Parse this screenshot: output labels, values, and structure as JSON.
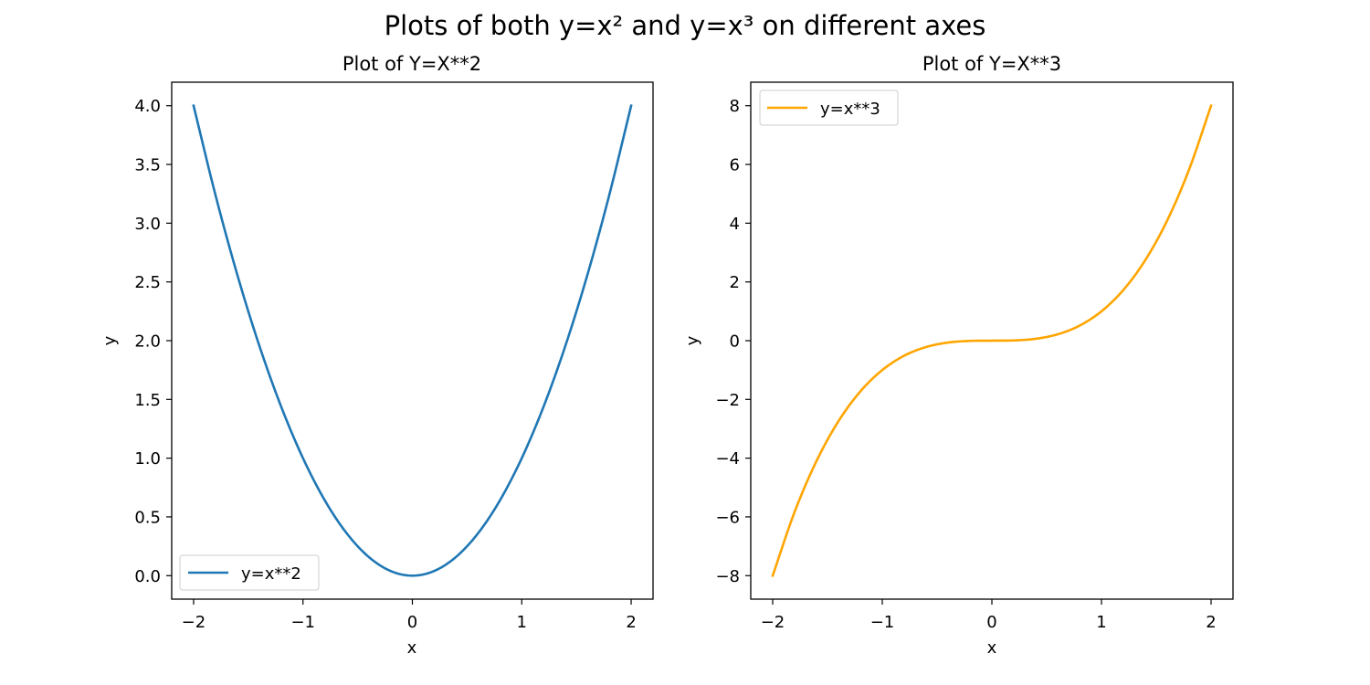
{
  "figure": {
    "suptitle": "Plots of both y=x² and y=x³ on different axes"
  },
  "chart_data": [
    {
      "type": "line",
      "title": "Plot of Y=X**2",
      "xlabel": "x",
      "ylabel": "y",
      "xlim": [
        -2.2,
        2.2
      ],
      "ylim": [
        -0.2,
        4.2
      ],
      "xticks": [
        -2,
        -1,
        0,
        1,
        2
      ],
      "xtick_labels": [
        "−2",
        "−1",
        "0",
        "1",
        "2"
      ],
      "yticks": [
        0.0,
        0.5,
        1.0,
        1.5,
        2.0,
        2.5,
        3.0,
        3.5,
        4.0
      ],
      "ytick_labels": [
        "0.0",
        "0.5",
        "1.0",
        "1.5",
        "2.0",
        "2.5",
        "3.0",
        "3.5",
        "4.0"
      ],
      "grid": false,
      "legend_position": "lower-left",
      "series": [
        {
          "name": "y=x**2",
          "color": "#1f77b4",
          "x": [
            -2.0,
            -1.8,
            -1.6,
            -1.4,
            -1.2,
            -1.0,
            -0.8,
            -0.6,
            -0.4,
            -0.2,
            0.0,
            0.2,
            0.4,
            0.6,
            0.8,
            1.0,
            1.2,
            1.4,
            1.6,
            1.8,
            2.0
          ],
          "y": [
            4.0,
            3.24,
            2.56,
            1.96,
            1.44,
            1.0,
            0.64,
            0.36,
            0.16,
            0.04,
            0.0,
            0.04,
            0.16,
            0.36,
            0.64,
            1.0,
            1.44,
            1.96,
            2.56,
            3.24,
            4.0
          ]
        }
      ]
    },
    {
      "type": "line",
      "title": "Plot of Y=X**3",
      "xlabel": "x",
      "ylabel": "y",
      "xlim": [
        -2.2,
        2.2
      ],
      "ylim": [
        -8.8,
        8.8
      ],
      "xticks": [
        -2,
        -1,
        0,
        1,
        2
      ],
      "xtick_labels": [
        "−2",
        "−1",
        "0",
        "1",
        "2"
      ],
      "yticks": [
        -8,
        -6,
        -4,
        -2,
        0,
        2,
        4,
        6,
        8
      ],
      "ytick_labels": [
        "−8",
        "−6",
        "−4",
        "−2",
        "0",
        "2",
        "4",
        "6",
        "8"
      ],
      "grid": false,
      "legend_position": "upper-left",
      "series": [
        {
          "name": "y=x**3",
          "color": "#ffa500",
          "x": [
            -2.0,
            -1.8,
            -1.6,
            -1.4,
            -1.2,
            -1.0,
            -0.8,
            -0.6,
            -0.4,
            -0.2,
            0.0,
            0.2,
            0.4,
            0.6,
            0.8,
            1.0,
            1.2,
            1.4,
            1.6,
            1.8,
            2.0
          ],
          "y": [
            -8.0,
            -5.832,
            -4.096,
            -2.744,
            -1.728,
            -1.0,
            -0.512,
            -0.216,
            -0.064,
            -0.008,
            0.0,
            0.008,
            0.064,
            0.216,
            0.512,
            1.0,
            1.728,
            2.744,
            4.096,
            5.832,
            8.0
          ]
        }
      ]
    }
  ]
}
